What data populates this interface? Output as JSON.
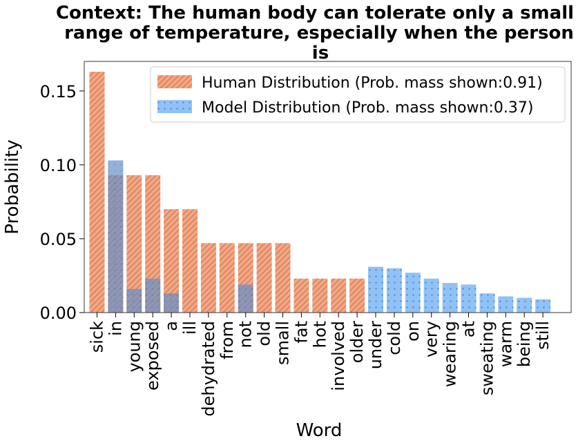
{
  "chart_data": {
    "type": "bar",
    "title_lines": [
      "Context: The human body can tolerate only a small",
      "range of temperature, especially when the person",
      "is"
    ],
    "xlabel": "Word",
    "ylabel": "Probability",
    "ylim": [
      0,
      0.17
    ],
    "yticks": [
      0.0,
      0.05,
      0.1,
      0.15
    ],
    "ytick_labels": [
      "0.00",
      "0.05",
      "0.10",
      "0.15"
    ],
    "categories": [
      "sick",
      "in",
      "young",
      "exposed",
      "a",
      "ill",
      "dehydrated",
      "from",
      "not",
      "old",
      "small",
      "fat",
      "hot",
      "involved",
      "older",
      "under",
      "cold",
      "on",
      "very",
      "wearing",
      "at",
      "sweating",
      "warm",
      "being",
      "still"
    ],
    "series": [
      {
        "name": "Human Distribution (Prob. mass shown:0.91)",
        "color": "#f4a582",
        "hatch": "diagonal",
        "values": [
          0.163,
          0.093,
          0.093,
          0.093,
          0.07,
          0.07,
          0.047,
          0.047,
          0.047,
          0.047,
          0.047,
          0.023,
          0.023,
          0.023,
          0.023,
          0,
          0,
          0,
          0,
          0,
          0,
          0,
          0,
          0,
          0
        ]
      },
      {
        "name": "Model Distribution (Prob. mass shown:0.37)",
        "color": "#8fc2f7",
        "hatch": "dots",
        "values": [
          0,
          0.103,
          0.016,
          0.023,
          0.013,
          0,
          0,
          0,
          0.019,
          0,
          0,
          0,
          0,
          0,
          0,
          0.031,
          0.03,
          0.027,
          0.023,
          0.02,
          0.019,
          0.013,
          0.011,
          0.01,
          0.009
        ]
      }
    ],
    "legend_position": "top-right"
  }
}
